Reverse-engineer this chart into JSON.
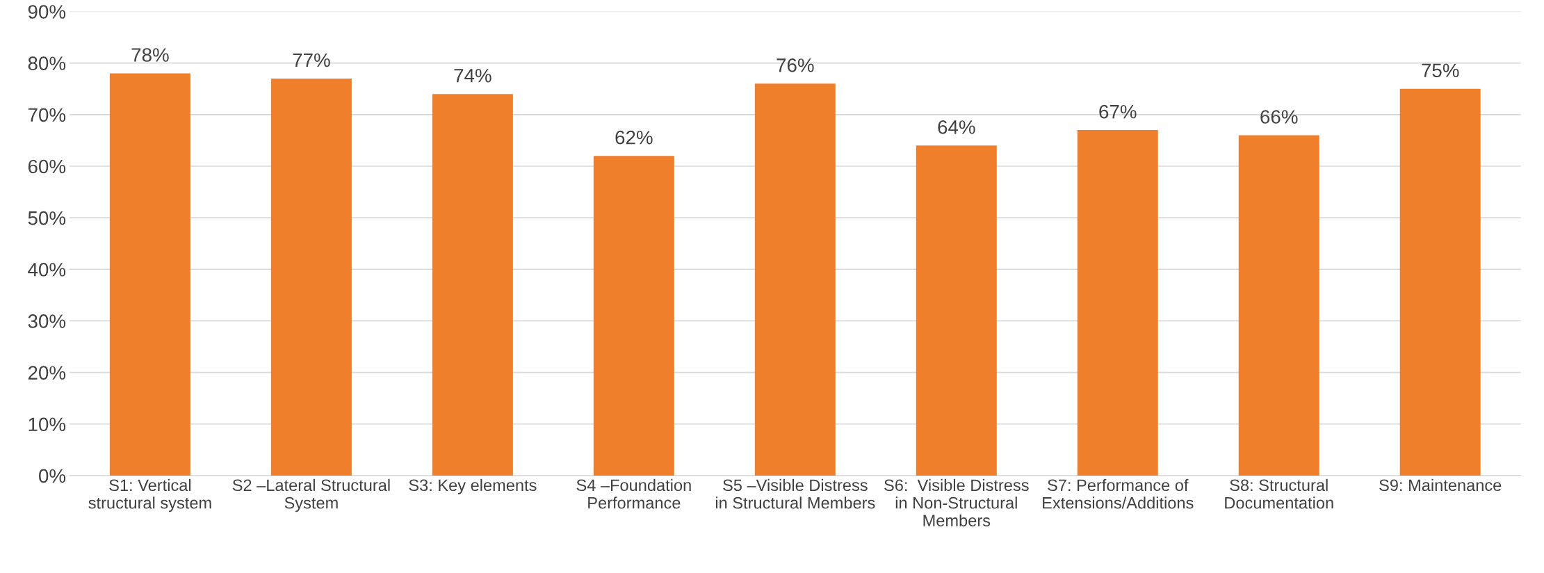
{
  "chart_data": {
    "type": "bar",
    "categories": [
      "S1: Vertical structural system",
      "S2 –Lateral Structural System",
      "S3: Key elements",
      "S4 –Foundation Performance",
      "S5 –Visible Distress in Structural Members",
      "S6:  Visible Distress in Non-Structural Members",
      "S7: Performance of Extensions/Additions",
      "S8: Structural Documentation",
      "S9: Maintenance"
    ],
    "values": [
      78,
      77,
      74,
      62,
      76,
      64,
      67,
      66,
      75
    ],
    "value_labels": [
      "78%",
      "77%",
      "74%",
      "62%",
      "76%",
      "64%",
      "67%",
      "66%",
      "75%"
    ],
    "color": "#f07f2c",
    "ylim": [
      0,
      90
    ],
    "yticks": [
      {
        "value": 0,
        "label": "0%"
      },
      {
        "value": 10,
        "label": "10%"
      },
      {
        "value": 20,
        "label": "20%"
      },
      {
        "value": 30,
        "label": "30%"
      },
      {
        "value": 40,
        "label": "40%"
      },
      {
        "value": 50,
        "label": "50%"
      },
      {
        "value": 60,
        "label": "60%"
      },
      {
        "value": 70,
        "label": "70%"
      },
      {
        "value": 80,
        "label": "80%"
      },
      {
        "value": 90,
        "label": "90%"
      }
    ],
    "grid": "y"
  }
}
